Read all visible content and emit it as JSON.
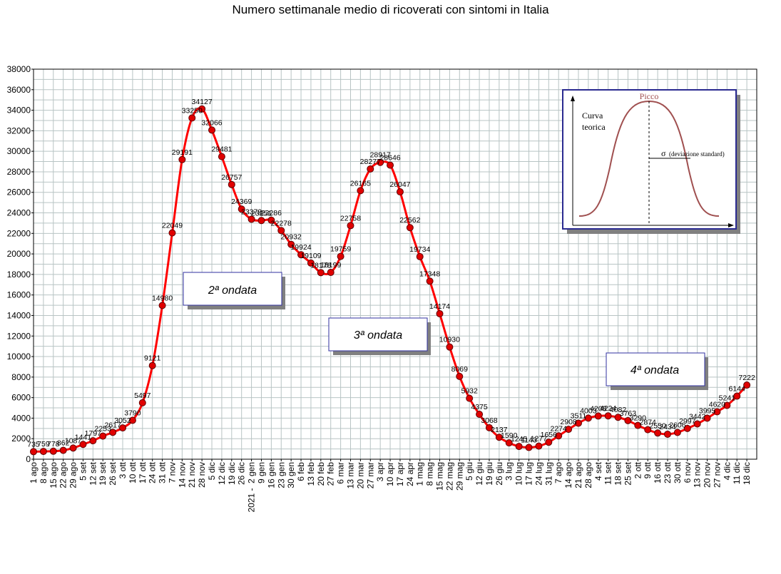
{
  "chart_data": {
    "type": "line",
    "title": "Numero settimanale medio di ricoverati con sintomi in Italia",
    "xlabel": "",
    "ylabel": "",
    "ylim": [
      0,
      38000
    ],
    "yticks": [
      0,
      2000,
      4000,
      6000,
      8000,
      10000,
      12000,
      14000,
      16000,
      18000,
      20000,
      22000,
      24000,
      26000,
      28000,
      30000,
      32000,
      34000,
      36000,
      38000
    ],
    "grid": true,
    "line_color": "#ff0000",
    "marker_color": "#e00000",
    "categories": [
      "1 ago",
      "8 ago",
      "15 ago",
      "22 ago",
      "29 ago",
      "5 set",
      "12 set",
      "19 set",
      "26 set",
      "3 ott",
      "10 ott",
      "17 ott",
      "24 ott",
      "31 ott",
      "7 nov",
      "14 nov",
      "21 nov",
      "28 nov",
      "5 dic",
      "12 dic",
      "19 dic",
      "26 dic",
      "2 gen",
      "9 gen",
      "16 gen",
      "23 gen",
      "30 gen",
      "6 feb",
      "13 feb",
      "20 feb",
      "27 feb",
      "6 mar",
      "13 mar",
      "20 mar",
      "27 mar",
      "3 apr",
      "10 apr",
      "17 apr",
      "24 apr",
      "1 mag",
      "8 mag",
      "15 mag",
      "22 mag",
      "29 mag",
      "5 giu",
      "12 giu",
      "19 giu",
      "26 giu",
      "3 lug",
      "10 lug",
      "17 lug",
      "24 lug",
      "31 lug",
      "7 ago",
      "14 ago",
      "21 ago",
      "28 ago",
      "4 set",
      "11 set",
      "18 set",
      "25 set",
      "2 ott",
      "9 ott",
      "16 ott",
      "23 ott",
      "30 ott",
      "6 nov",
      "13 nov",
      "20 nov",
      "27 nov",
      "4 dic",
      "11 dic",
      "18 dic"
    ],
    "year_marker": {
      "label": "2021 -",
      "before_category": "2 gen"
    },
    "values": [
      735,
      759,
      778,
      862,
      1087,
      1441,
      1797,
      2253,
      2617,
      3052,
      3790,
      5497,
      9121,
      14980,
      22049,
      29191,
      33250,
      34127,
      32066,
      29481,
      26757,
      24369,
      23379,
      23251,
      23286,
      22278,
      20932,
      19924,
      19109,
      18178,
      18199,
      19759,
      22758,
      26165,
      28277,
      28917,
      28646,
      26047,
      22562,
      19734,
      17348,
      14174,
      10930,
      8069,
      5932,
      4375,
      3068,
      2137,
      1590,
      1245,
      1143,
      1277,
      1656,
      2274,
      2908,
      3511,
      4003,
      4208,
      4224,
      4082,
      3763,
      3290,
      2874,
      2550,
      2434,
      2606,
      2997,
      3442,
      3995,
      4620,
      5241,
      6144,
      7222
    ],
    "annotations": [
      {
        "text": "2ª ondata"
      },
      {
        "text": "3ª ondata"
      },
      {
        "text": "4ª ondata"
      }
    ],
    "inset": {
      "peak_label": "Picco",
      "curve_label_1": "Curva",
      "curve_label_2": "teorica",
      "sigma_label": "σ",
      "sigma_note": "(deviazione standard)"
    }
  }
}
